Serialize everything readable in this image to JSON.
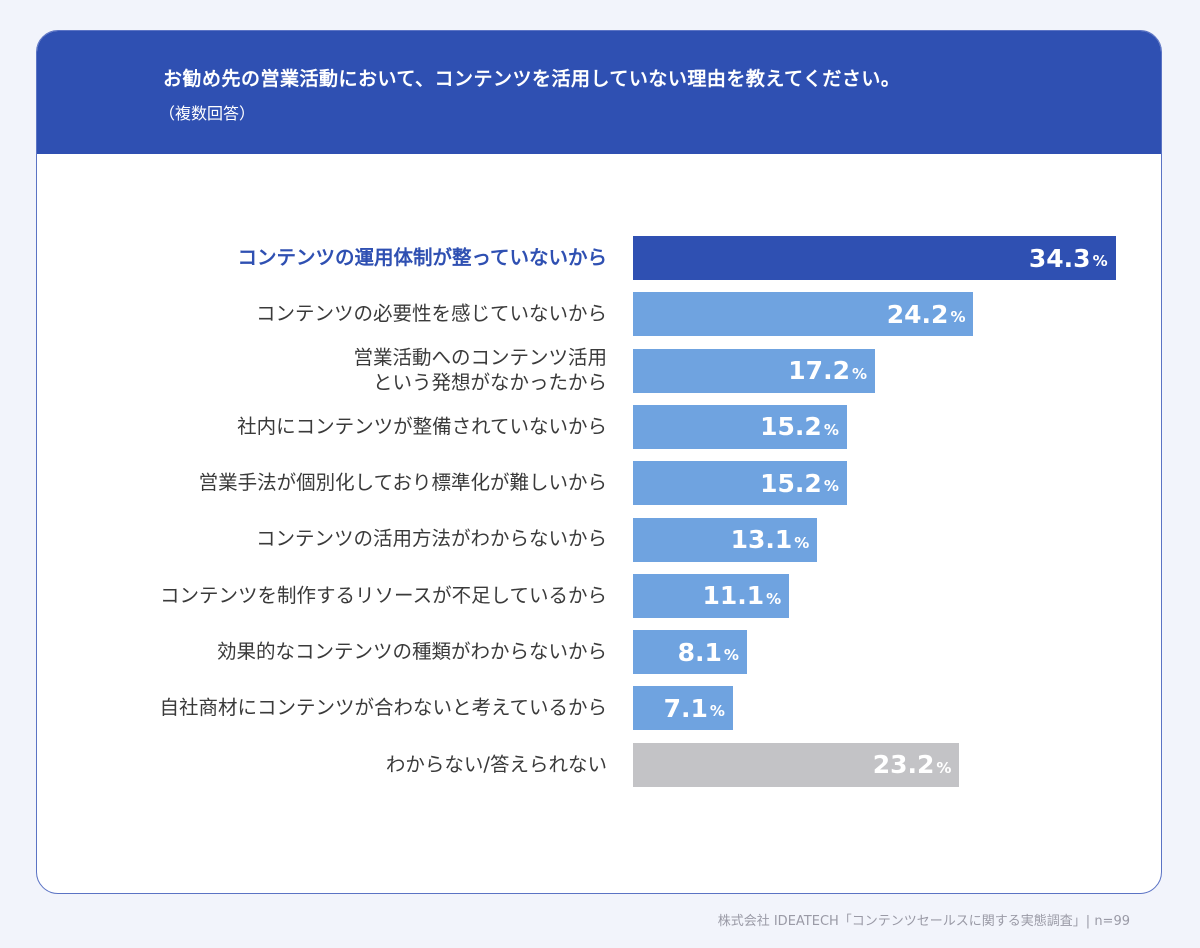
{
  "header": {
    "title": "お勧め先の営業活動において、コンテンツを活用していない理由を教えてください。",
    "subtitle": "（複数回答）"
  },
  "chart_data": {
    "type": "bar",
    "orientation": "horizontal",
    "categories": [
      "コンテンツの運用体制が整っていないから",
      "コンテンツの必要性を感じていないから",
      "営業活動へのコンテンツ活用\nという発想がなかったから",
      "社内にコンテンツが整備されていないから",
      "営業手法が個別化しており標準化が難しいから",
      "コンテンツの活用方法がわからないから",
      "コンテンツを制作するリソースが不足しているから",
      "効果的なコンテンツの種類がわからないから",
      "自社商材にコンテンツが合わないと考えているから",
      "わからない/答えられない"
    ],
    "values": [
      34.3,
      24.2,
      17.2,
      15.2,
      15.2,
      13.1,
      11.1,
      8.1,
      7.1,
      23.2
    ],
    "value_labels": [
      "34.3",
      "24.2",
      "17.2",
      "15.2",
      "15.2",
      "13.1",
      "11.1",
      "8.1",
      "7.1",
      "23.2"
    ],
    "unit": "%",
    "highlight_index": 0,
    "other_index": 9,
    "xlim": [
      0,
      35
    ],
    "colors": {
      "highlight": "#2f50b2",
      "normal": "#6fa3e0",
      "other": "#c3c3c6"
    }
  },
  "footer": {
    "source": "株式会社 IDEATECH「コンテンツセールスに関する実態調査」| n=99"
  }
}
